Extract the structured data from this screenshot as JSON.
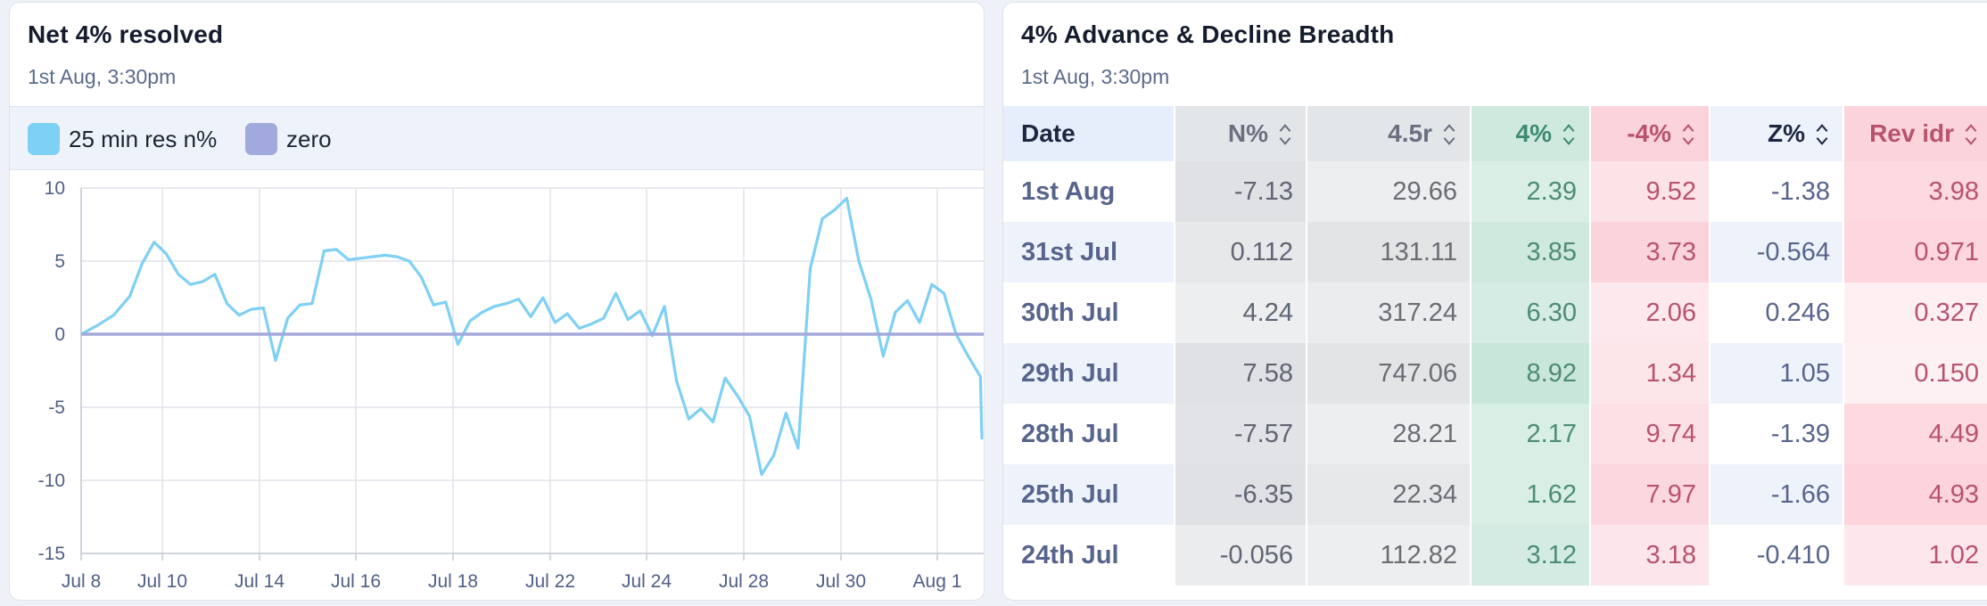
{
  "left_panel": {
    "title": "Net 4% resolved",
    "subtitle": "1st Aug, 3:30pm",
    "legend": [
      {
        "label": "25 min res n%",
        "color": "#7fd0f5"
      },
      {
        "label": "zero",
        "color": "#a2a9dc"
      }
    ]
  },
  "chart_data": {
    "type": "line",
    "ylim": [
      -15,
      10
    ],
    "y_ticks": [
      "10",
      "5",
      "0",
      "-5",
      "-10",
      "-15"
    ],
    "x_ticks": [
      "Jul 8",
      "Jul 10",
      "Jul 14",
      "Jul 16",
      "Jul 18",
      "Jul 22",
      "Jul 24",
      "Jul 28",
      "Jul 30",
      "Aug 1"
    ],
    "grid": true,
    "series": [
      {
        "name": "25 min res n%",
        "color": "#7fd0f5",
        "x": [
          "Jul 8",
          "Jul 8",
          "Jul 8",
          "Jul 9",
          "Jul 9",
          "Jul 9",
          "Jul 9",
          "Jul 10",
          "Jul 10",
          "Jul 10",
          "Jul 10",
          "Jul 11",
          "Jul 11",
          "Jul 11",
          "Jul 11",
          "Jul 14",
          "Jul 14",
          "Jul 14",
          "Jul 14",
          "Jul 15",
          "Jul 15",
          "Jul 15",
          "Jul 15",
          "Jul 16",
          "Jul 16",
          "Jul 16",
          "Jul 16",
          "Jul 17",
          "Jul 17",
          "Jul 17",
          "Jul 17",
          "Jul 18",
          "Jul 18",
          "Jul 18",
          "Jul 18",
          "Jul 21",
          "Jul 21",
          "Jul 21",
          "Jul 21",
          "Jul 22",
          "Jul 22",
          "Jul 22",
          "Jul 22",
          "Jul 23",
          "Jul 23",
          "Jul 23",
          "Jul 23",
          "Jul 24",
          "Jul 24",
          "Jul 24",
          "Jul 24",
          "Jul 25",
          "Jul 25",
          "Jul 25",
          "Jul 25",
          "Jul 28",
          "Jul 28",
          "Jul 28",
          "Jul 28",
          "Jul 29",
          "Jul 29",
          "Jul 29",
          "Jul 29",
          "Jul 30",
          "Jul 30",
          "Jul 30",
          "Jul 30",
          "Jul 31",
          "Jul 31",
          "Jul 31",
          "Jul 31",
          "Aug 1",
          "Aug 1",
          "Aug 1",
          "Aug 1"
        ],
        "y": [
          0.0,
          0.6,
          1.3,
          2.6,
          4.8,
          6.3,
          5.5,
          4.1,
          3.4,
          3.6,
          4.1,
          2.1,
          1.3,
          1.7,
          1.8,
          -1.8,
          1.1,
          2.0,
          2.1,
          5.7,
          5.8,
          5.1,
          5.2,
          5.3,
          5.4,
          5.3,
          5.0,
          3.9,
          2.0,
          2.2,
          -0.7,
          0.9,
          1.5,
          1.9,
          2.1,
          2.4,
          1.2,
          2.5,
          0.8,
          1.4,
          0.4,
          0.7,
          1.1,
          2.8,
          1.0,
          1.6,
          -0.1,
          1.9,
          -3.2,
          -5.8,
          -5.1,
          -6.0,
          -3.0,
          -4.2,
          -5.6,
          -9.6,
          -8.3,
          -5.4,
          -7.8,
          4.5,
          7.9,
          8.5,
          9.3,
          5.0,
          2.4,
          -1.5,
          1.5,
          2.3,
          0.8,
          3.4,
          2.8,
          0.0,
          -1.5,
          -2.9,
          -7.2
        ]
      },
      {
        "name": "zero",
        "color": "#a2a9dc",
        "x": [
          "Jul 8",
          "Aug 1"
        ],
        "y": [
          0,
          0
        ]
      }
    ]
  },
  "right_panel": {
    "title": "4% Advance & Decline Breadth",
    "subtitle": "1st Aug, 3:30pm",
    "columns": [
      "Date",
      "N%",
      "4.5r",
      "4%",
      "-4%",
      "Z%",
      "Rev idr"
    ],
    "rows": [
      [
        "1st Aug",
        "-7.13",
        "29.66",
        "2.39",
        "9.52",
        "-1.38",
        "3.98"
      ],
      [
        "31st Jul",
        "0.112",
        "131.11",
        "3.85",
        "3.73",
        "-0.564",
        "0.971"
      ],
      [
        "30th Jul",
        "4.24",
        "317.24",
        "6.30",
        "2.06",
        "0.246",
        "0.327"
      ],
      [
        "29th Jul",
        "7.58",
        "747.06",
        "8.92",
        "1.34",
        "1.05",
        "0.150"
      ],
      [
        "28th Jul",
        "-7.57",
        "28.21",
        "2.17",
        "9.74",
        "-1.39",
        "4.49"
      ],
      [
        "25th Jul",
        "-6.35",
        "22.34",
        "1.62",
        "7.97",
        "-1.66",
        "4.93"
      ],
      [
        "24th Jul",
        "-0.056",
        "112.82",
        "3.12",
        "3.18",
        "-0.410",
        "1.02"
      ]
    ],
    "row_shading": [
      [
        "#ffffff",
        "#dfe1e4",
        "#eceeef",
        "#d9efe6",
        "#fce3e8",
        "#ffffff",
        "#fdd9e0"
      ],
      [
        "#eef3fb",
        "#e6e8ea",
        "#e2e4e6",
        "#cfe9df",
        "#fbd3db",
        "#eef3fb",
        "#fdd6de"
      ],
      [
        "#ffffff",
        "#eceeef",
        "#eaecee",
        "#d4ece3",
        "#fde9ed",
        "#ffffff",
        "#feeff2"
      ],
      [
        "#eef3fb",
        "#dfe1e4",
        "#e2e4e6",
        "#c9e6da",
        "#fde6ea",
        "#eef3fb",
        "#fdf1f4"
      ],
      [
        "#ffffff",
        "#e1e3e6",
        "#eceeef",
        "#d9efe6",
        "#fce0e6",
        "#ffffff",
        "#fdd9e0"
      ],
      [
        "#eef3fb",
        "#dfe1e4",
        "#e6e8ea",
        "#d9efe6",
        "#fbd8df",
        "#eef3fb",
        "#fdd3dc"
      ],
      [
        "#ffffff",
        "#eaecee",
        "#eceeef",
        "#d3ebe2",
        "#fce6eb",
        "#ffffff",
        "#fde7ec"
      ]
    ]
  }
}
